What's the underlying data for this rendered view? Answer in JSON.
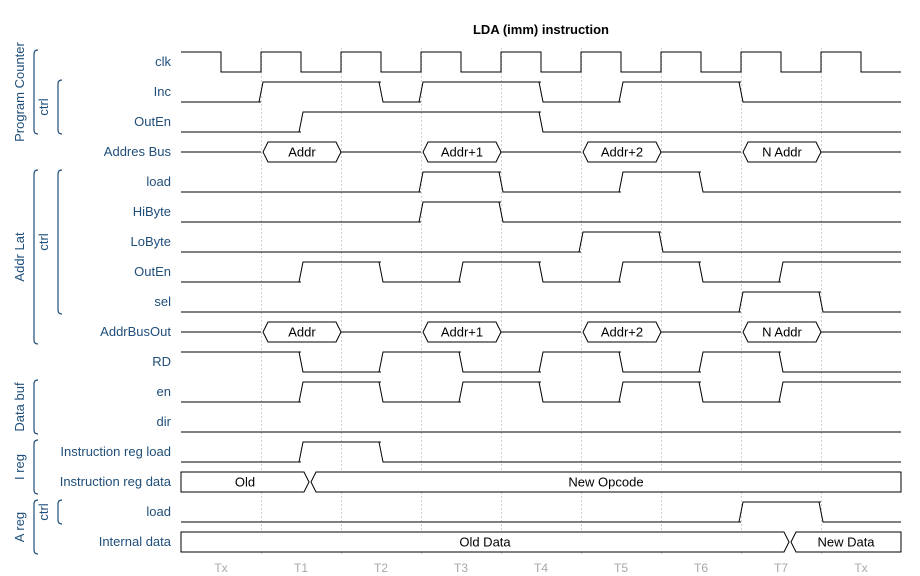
{
  "title": "LDA (imm) instruction",
  "cycles": [
    "Tx",
    "T1",
    "T2",
    "T3",
    "T4",
    "T5",
    "T6",
    "T7",
    "Tx"
  ],
  "signals": [
    {
      "name": "clk",
      "kind": "clk"
    },
    {
      "name": "Inc",
      "kind": "bit",
      "wave": "00111011100111000"
    },
    {
      "name": "OutEn",
      "kind": "bit",
      "wave": "00011111100000000"
    },
    {
      "name": "Addres Bus",
      "kind": "bus",
      "segments": [
        {
          "from": 1,
          "to": 2,
          "label": "Addr"
        },
        {
          "from": 3,
          "to": 4,
          "label": "Addr+1"
        },
        {
          "from": 5,
          "to": 6,
          "label": "Addr+2"
        },
        {
          "from": 7,
          "to": 8,
          "label": "N Addr"
        }
      ]
    },
    {
      "name": "load",
      "kind": "bit",
      "wave": "00000011000110000"
    },
    {
      "name": "HiByte",
      "kind": "bit",
      "wave": "00000011000000000"
    },
    {
      "name": "LoByte",
      "kind": "bit",
      "wave": "00000000001100000"
    },
    {
      "name": "OutEn",
      "kind": "bit",
      "wave": "00011001100110011"
    },
    {
      "name": "sel",
      "kind": "bit",
      "wave": "00000000000000110"
    },
    {
      "name": "AddrBusOut",
      "kind": "bus",
      "segments": [
        {
          "from": 1,
          "to": 2,
          "label": "Addr"
        },
        {
          "from": 3,
          "to": 4,
          "label": "Addr+1"
        },
        {
          "from": 5,
          "to": 6,
          "label": "Addr+2"
        },
        {
          "from": 7,
          "to": 8,
          "label": "N Addr"
        }
      ]
    },
    {
      "name": "RD",
      "kind": "bit",
      "wave": "11100110011001100"
    },
    {
      "name": "en",
      "kind": "bit",
      "wave": "00011001100110011"
    },
    {
      "name": "dir",
      "kind": "bit",
      "wave": "00000000000000000"
    },
    {
      "name": "Instruction reg load",
      "kind": "bit",
      "wave": "00011000000000000"
    },
    {
      "name": "Instruction reg data",
      "kind": "bus",
      "segments": [
        {
          "from": 0,
          "to": 1.6,
          "label": "Old"
        },
        {
          "from": 1.6,
          "to": 9,
          "label": "New Opcode"
        }
      ]
    },
    {
      "name": "load",
      "kind": "bit",
      "wave": "00000000000000110"
    },
    {
      "name": "Internal data",
      "kind": "bus",
      "segments": [
        {
          "from": 0,
          "to": 7.6,
          "label": "Old Data"
        },
        {
          "from": 7.6,
          "to": 9,
          "label": "New Data"
        }
      ]
    }
  ],
  "groups": [
    {
      "label": "Program Counter",
      "from": 0,
      "to": 2
    },
    {
      "label": "ctrl",
      "from": 1,
      "to": 2
    },
    {
      "label": "Addr Lat",
      "from": 4,
      "to": 9
    },
    {
      "label": "ctrl",
      "from": 4,
      "to": 8
    },
    {
      "label": "Data buf",
      "from": 11,
      "to": 12
    },
    {
      "label": "I reg",
      "from": 13,
      "to": 14
    },
    {
      "label": "A reg",
      "from": 15,
      "to": 16
    },
    {
      "label": "ctrl",
      "from": 15,
      "to": 15
    }
  ]
}
